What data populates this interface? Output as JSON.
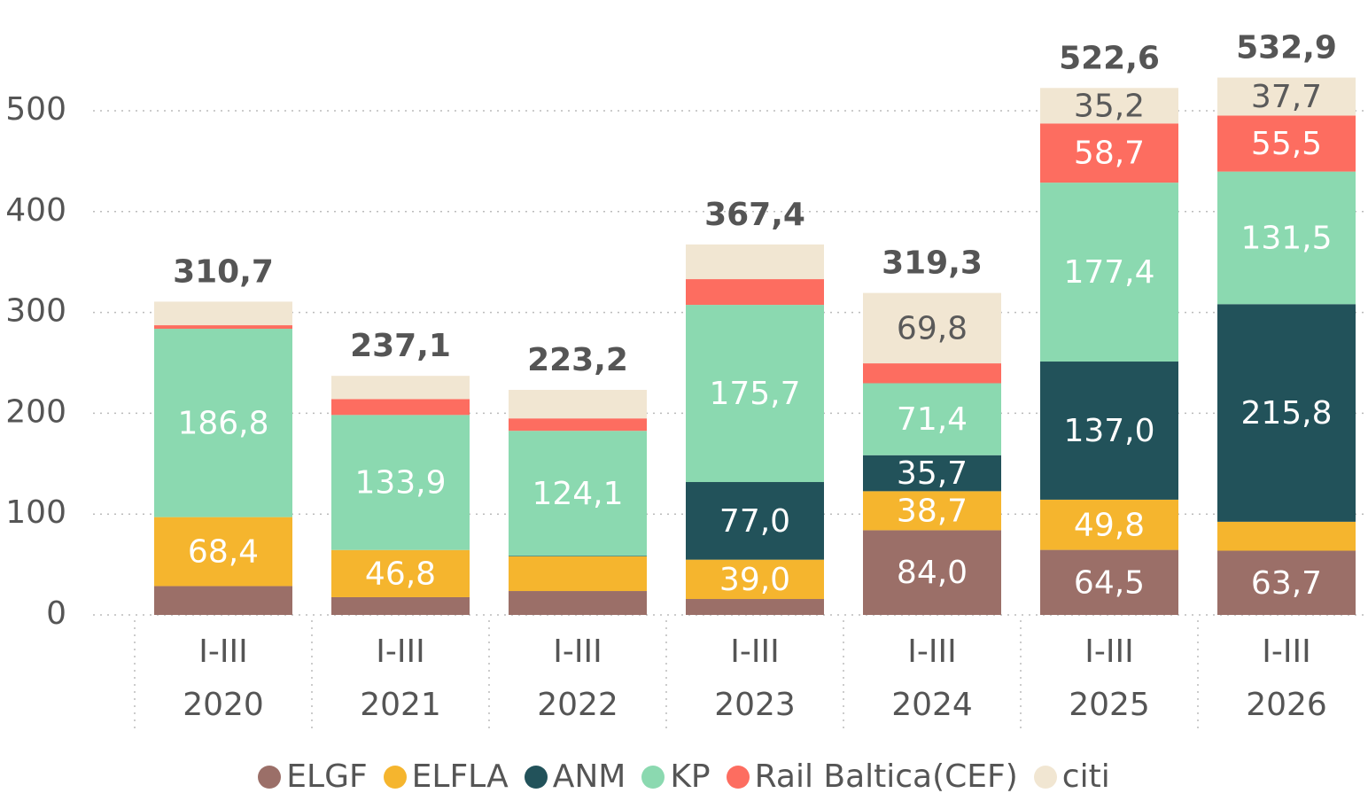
{
  "chart_data": {
    "type": "stacked_bar",
    "categories": [
      "I-III\n2020",
      "I-III\n2021",
      "I-III\n2022",
      "I-III\n2023",
      "I-III\n2024",
      "I-III\n2025",
      "I-III\n2026"
    ],
    "series": [
      {
        "name": "ELGF",
        "color": "#9b6f68",
        "label_color": "#ffffff",
        "values": [
          28.6,
          17.6,
          23.7,
          15.8,
          84.0,
          64.5,
          63.7
        ],
        "value_labels": [
          null,
          null,
          null,
          null,
          "84,0",
          "64,5",
          "63,7"
        ]
      },
      {
        "name": "ELFLA",
        "color": "#f5b52e",
        "label_color": "#ffffff",
        "values": [
          68.4,
          46.8,
          34.3,
          39.0,
          38.7,
          49.8,
          28.7
        ],
        "value_labels": [
          "68,4",
          "46,8",
          null,
          "39,0",
          "38,7",
          "49,8",
          null
        ]
      },
      {
        "name": "ANM",
        "color": "#22525a",
        "label_color": "#ffffff",
        "values": [
          0,
          0,
          0.5,
          77.0,
          35.7,
          137.0,
          215.8
        ],
        "value_labels": [
          null,
          null,
          null,
          "77,0",
          "35,7",
          "137,0",
          "215,8"
        ]
      },
      {
        "name": "KP",
        "color": "#8bd9b0",
        "label_color": "#ffffff",
        "values": [
          186.8,
          133.9,
          124.1,
          175.7,
          71.4,
          177.4,
          131.5
        ],
        "value_labels": [
          "186,8",
          "133,9",
          "124,1",
          "175,7",
          "71,4",
          "177,4",
          "131,5"
        ]
      },
      {
        "name": "Rail Baltica(CEF)",
        "color": "#fd6d60",
        "label_color": "#ffffff",
        "values": [
          3.5,
          15.8,
          12.3,
          25.5,
          19.7,
          58.7,
          55.5
        ],
        "value_labels": [
          null,
          null,
          null,
          null,
          null,
          "58,7",
          "55,5"
        ]
      },
      {
        "name": "citi",
        "color": "#f1e6d2",
        "label_color": "#5a5a5a",
        "values": [
          23.4,
          23.0,
          28.3,
          34.4,
          69.8,
          35.2,
          37.7
        ],
        "value_labels": [
          null,
          null,
          null,
          null,
          "69,8",
          "35,2",
          "37,7"
        ]
      }
    ],
    "totals": [
      310.7,
      237.1,
      223.2,
      367.4,
      319.3,
      522.6,
      532.9
    ],
    "total_labels": [
      "310,7",
      "237,1",
      "223,2",
      "367,4",
      "319,3",
      "522,6",
      "532,9"
    ],
    "ylim": [
      0,
      500
    ],
    "yticks": [
      0,
      100,
      200,
      300,
      400,
      500
    ],
    "grid": true,
    "legend": "bottom"
  }
}
